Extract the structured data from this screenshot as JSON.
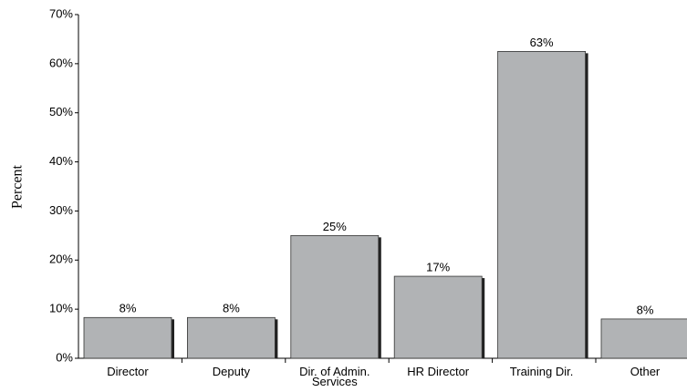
{
  "chart_data": {
    "type": "bar",
    "y_label": "Percent",
    "categories": [
      "Director",
      "Deputy",
      "Dir. of Admin. Services",
      "HR Director",
      "Training Dir.",
      "Other"
    ],
    "values": [
      8.3,
      8.3,
      25,
      16.7,
      62.5,
      8
    ],
    "value_labels": [
      "8%",
      "8%",
      "25%",
      "17%",
      "63%",
      "8%"
    ],
    "color": "#b1b3b5",
    "ylim": [
      0,
      70
    ],
    "yticks": [
      {
        "value": 0,
        "label": "0%"
      },
      {
        "value": 10,
        "label": "10%"
      },
      {
        "value": 20,
        "label": "20%"
      },
      {
        "value": 30,
        "label": "30%"
      },
      {
        "value": 40,
        "label": "40%"
      },
      {
        "value": 50,
        "label": "50%"
      },
      {
        "value": 60,
        "label": "60%"
      },
      {
        "value": 70,
        "label": "70%"
      }
    ],
    "grid": false
  }
}
